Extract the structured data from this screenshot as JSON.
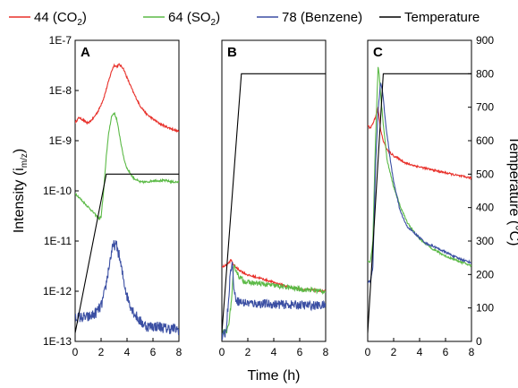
{
  "chart_data": {
    "type": "line",
    "legend": {
      "position": "top",
      "entries": [
        {
          "label": "44 (CO",
          "sub": "2",
          "after": ")",
          "color": "#e8302a"
        },
        {
          "label": "64 (SO",
          "sub": "2",
          "after": ")",
          "color": "#5cba47"
        },
        {
          "label": "78 (Benzene)",
          "sub": "",
          "after": "",
          "color": "#3b4fa3"
        },
        {
          "label": "Temperature",
          "sub": "",
          "after": "",
          "color": "#000000"
        }
      ]
    },
    "ylabel_left": {
      "main": "Intensity (i",
      "sub": "m/z",
      "after": ")"
    },
    "ylabel_right": "Temperature (°C)",
    "xlabel": "Time (h)",
    "left_axis": {
      "scale": "log",
      "ylim": [
        1e-13,
        1e-07
      ],
      "tick_labels": [
        "1E-13",
        "1E-12",
        "1E-11",
        "1E-10",
        "1E-9",
        "1E-8",
        "1E-7"
      ]
    },
    "right_axis": {
      "scale": "linear",
      "ylim": [
        0,
        900
      ],
      "tick_labels": [
        "0",
        "100",
        "200",
        "300",
        "400",
        "500",
        "600",
        "700",
        "800",
        "900"
      ]
    },
    "x_axis": {
      "xlim": [
        0,
        8
      ],
      "tick_labels": [
        "0",
        "2",
        "4",
        "6",
        "8"
      ]
    },
    "grid": false,
    "panels": [
      {
        "label": "A",
        "series": [
          {
            "name": "44 (CO2)",
            "color": "#e8302a",
            "noise": 0.02,
            "x": [
              0,
              0.3,
              0.6,
              1.0,
              1.4,
              1.8,
              2.2,
              2.5,
              2.8,
              3.0,
              3.2,
              3.4,
              3.7,
              4.0,
              4.5,
              5.0,
              5.5,
              6.0,
              6.5,
              7.0,
              7.5,
              8.0
            ],
            "y": [
              2.3e-09,
              2.9e-09,
              2.6e-09,
              2.2e-09,
              2.8e-09,
              4e-09,
              7e-09,
              1.3e-08,
              2.4e-08,
              3.2e-08,
              3e-08,
              3.3e-08,
              2.8e-08,
              1.8e-08,
              9e-09,
              5e-09,
              3.4e-09,
              2.7e-09,
              2.2e-09,
              1.9e-09,
              1.7e-09,
              1.5e-09
            ]
          },
          {
            "name": "64 (SO2)",
            "color": "#5cba47",
            "noise": 0.02,
            "x": [
              0,
              0.5,
              1.0,
              1.5,
              1.8,
              2.0,
              2.2,
              2.4,
              2.6,
              2.8,
              3.0,
              3.2,
              3.4,
              3.6,
              3.8,
              4.0,
              4.5,
              5.0,
              5.5,
              6.0,
              6.5,
              7.0,
              7.5,
              8.0
            ],
            "y": [
              9e-11,
              6.5e-11,
              4.8e-11,
              3.5e-11,
              2.8e-11,
              3e-11,
              1e-10,
              5e-10,
              1.5e-09,
              3e-09,
              3.6e-09,
              2.7e-09,
              1.4e-09,
              7e-10,
              4e-10,
              2.8e-10,
              1.8e-10,
              1.5e-10,
              1.5e-10,
              1.6e-10,
              1.6e-10,
              1.6e-10,
              1.5e-10,
              1.5e-10
            ]
          },
          {
            "name": "78 (Benzene)",
            "color": "#3b4fa3",
            "noise": 0.11,
            "x": [
              0,
              0.5,
              1.0,
              1.5,
              2.0,
              2.3,
              2.6,
              2.8,
              3.0,
              3.2,
              3.4,
              3.6,
              3.8,
              4.0,
              4.3,
              4.6,
              5.0,
              5.5,
              6.0,
              6.5,
              7.0,
              7.5,
              8.0
            ],
            "y": [
              3e-13,
              3e-13,
              3e-13,
              3.5e-13,
              5e-13,
              1e-12,
              3e-12,
              6e-12,
              8.5e-12,
              8e-12,
              5e-12,
              2.5e-12,
              1.4e-12,
              8e-13,
              5e-13,
              3.5e-13,
              2.5e-13,
              2e-13,
              2e-13,
              2e-13,
              1.8e-13,
              1.8e-13,
              1.7e-13
            ]
          },
          {
            "name": "Temperature",
            "color": "#000000",
            "noise": 0,
            "x": [
              0,
              2.4,
              8.0
            ],
            "t": [
              25,
              500,
              500
            ]
          }
        ]
      },
      {
        "label": "B",
        "series": [
          {
            "name": "44 (CO2)",
            "color": "#e8302a",
            "noise": 0.02,
            "x": [
              0,
              0.3,
              0.5,
              0.7,
              0.9,
              1.2,
              1.6,
              2.0,
              3.0,
              4.0,
              5.0,
              6.0,
              7.0,
              8.0
            ],
            "y": [
              3e-12,
              3.3e-12,
              3.6e-12,
              4.2e-12,
              3.4e-12,
              2.8e-12,
              2.4e-12,
              2.1e-12,
              1.8e-12,
              1.5e-12,
              1.25e-12,
              1.1e-12,
              1.05e-12,
              1e-12
            ]
          },
          {
            "name": "64 (SO2)",
            "color": "#5cba47",
            "noise": 0.05,
            "x": [
              0,
              0.4,
              0.6,
              0.8,
              0.9,
              1.0,
              1.3,
              1.7,
              2.0,
              3.0,
              4.0,
              5.0,
              6.0,
              7.0,
              8.0
            ],
            "y": [
              1.5e-13,
              1.6e-13,
              3e-13,
              1e-12,
              2.8e-12,
              3e-12,
              2e-12,
              1.6e-12,
              1.5e-12,
              1.4e-12,
              1.3e-12,
              1.2e-12,
              1.1e-12,
              1.05e-12,
              1e-12
            ]
          },
          {
            "name": "78 (Benzene)",
            "color": "#3b4fa3",
            "noise": 0.09,
            "x": [
              0,
              0.3,
              0.5,
              0.6,
              0.7,
              0.8,
              0.9,
              1.0,
              1.2,
              1.5,
              2.0,
              3.0,
              4.0,
              5.0,
              6.0,
              7.0,
              8.0
            ],
            "y": [
              1.2e-13,
              1.5e-13,
              6e-13,
              1.5e-12,
              3e-12,
              3.5e-12,
              1.5e-12,
              8e-13,
              6.5e-13,
              6e-13,
              5.8e-13,
              5.6e-13,
              5.5e-13,
              5.4e-13,
              5.3e-13,
              5.2e-13,
              5.2e-13
            ]
          },
          {
            "name": "Temperature",
            "color": "#000000",
            "noise": 0,
            "x": [
              0,
              1.5,
              8.0
            ],
            "t": [
              25,
              800,
              800
            ]
          }
        ]
      },
      {
        "label": "C",
        "series": [
          {
            "name": "44 (CO2)",
            "color": "#e8302a",
            "noise": 0.02,
            "x": [
              0,
              0.2,
              0.4,
              0.6,
              0.8,
              1.0,
              1.2,
              1.5,
              2.0,
              3.0,
              4.0,
              5.0,
              6.0,
              7.0,
              8.0
            ],
            "y": [
              2e-09,
              1.8e-09,
              2.2e-09,
              3e-09,
              4.5e-09,
              1.6e-09,
              1e-09,
              6.5e-10,
              5e-10,
              3.5e-10,
              3e-10,
              2.6e-10,
              2.3e-10,
              2e-10,
              1.8e-10
            ]
          },
          {
            "name": "64 (SO2)",
            "color": "#5cba47",
            "noise": 0.02,
            "x": [
              0,
              0.2,
              0.4,
              0.6,
              0.8,
              0.9,
              1.0,
              1.2,
              1.5,
              2.0,
              2.5,
              3.0,
              3.5,
              4.0,
              5.0,
              6.0,
              7.0,
              8.0
            ],
            "y": [
              4e-12,
              3.8e-12,
              1e-11,
              1e-09,
              3e-08,
              2e-08,
              8e-09,
              2.2e-09,
              4e-10,
              1.2e-10,
              5e-11,
              2.5e-11,
              1.6e-11,
              1.1e-11,
              7e-12,
              5e-12,
              4e-12,
              3.2e-12
            ]
          },
          {
            "name": "78 (Benzene)",
            "color": "#3b4fa3",
            "noise": 0.02,
            "x": [
              0,
              0.2,
              0.4,
              0.6,
              0.8,
              1.0,
              1.1,
              1.2,
              1.4,
              1.7,
              2.0,
              2.5,
              3.0,
              3.4,
              3.8,
              4.5,
              5.0,
              6.0,
              7.0,
              8.0
            ],
            "y": [
              1.5e-12,
              1.6e-12,
              3e-12,
              3e-10,
              4e-09,
              1.5e-08,
              1.1e-08,
              7e-09,
              2e-09,
              5e-10,
              1.5e-10,
              4e-11,
              2e-11,
              1.6e-11,
              1.3e-11,
              9e-12,
              8e-12,
              6e-12,
              4.5e-12,
              3.7e-12
            ]
          },
          {
            "name": "Temperature",
            "color": "#000000",
            "noise": 0,
            "x": [
              0,
              1.2,
              8.0
            ],
            "t": [
              25,
              800,
              800
            ]
          }
        ]
      }
    ]
  }
}
